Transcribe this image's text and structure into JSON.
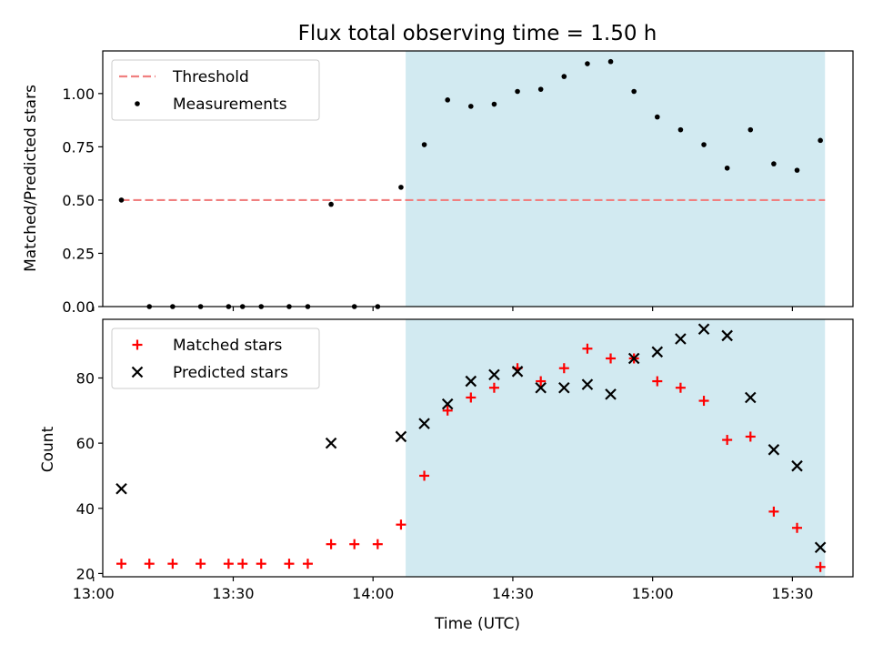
{
  "chart_data": [
    {
      "type": "scatter",
      "title": "Flux total observing time = 1.50 h",
      "xlabel": "",
      "ylabel": "Matched/Predicted stars",
      "xlim": [
        "13:02",
        "15:43"
      ],
      "ylim": [
        0,
        1.2
      ],
      "x_ticks": [
        "13:00",
        "13:30",
        "14:00",
        "14:30",
        "15:00",
        "15:30"
      ],
      "y_ticks": [
        "0.00",
        "0.25",
        "0.50",
        "0.75",
        "1.00"
      ],
      "legend": {
        "position": "top-left",
        "entries": [
          "Threshold",
          "Measurements"
        ]
      },
      "shaded_region": {
        "from": "14:07",
        "to": "15:37",
        "color": "#add8e6"
      },
      "threshold": {
        "name": "Threshold",
        "value": 0.5,
        "from": "13:06",
        "to": "15:37",
        "color": "#f08080"
      },
      "series": [
        {
          "name": "Measurements",
          "color": "#000000",
          "x": [
            "13:06",
            "13:12",
            "13:17",
            "13:23",
            "13:29",
            "13:32",
            "13:36",
            "13:42",
            "13:46",
            "13:51",
            "13:56",
            "14:01",
            "14:06",
            "14:11",
            "14:16",
            "14:21",
            "14:26",
            "14:31",
            "14:36",
            "14:41",
            "14:46",
            "14:51",
            "14:56",
            "15:01",
            "15:06",
            "15:11",
            "15:16",
            "15:21",
            "15:26",
            "15:31",
            "15:36"
          ],
          "values": [
            0.5,
            0.0,
            0.0,
            0.0,
            0.0,
            0.0,
            0.0,
            0.0,
            0.0,
            0.48,
            0.0,
            0.0,
            0.56,
            0.76,
            0.97,
            0.94,
            0.95,
            1.01,
            1.02,
            1.08,
            1.14,
            1.15,
            1.01,
            0.89,
            0.83,
            0.76,
            0.65,
            0.83,
            0.67,
            0.64,
            0.78
          ]
        }
      ]
    },
    {
      "type": "scatter",
      "title": "",
      "xlabel": "Time (UTC)",
      "ylabel": "Count",
      "xlim": [
        "13:02",
        "15:43"
      ],
      "ylim": [
        19,
        98
      ],
      "x_ticks": [
        "13:00",
        "13:30",
        "14:00",
        "14:30",
        "15:00",
        "15:30"
      ],
      "y_ticks": [
        "20",
        "40",
        "60",
        "80"
      ],
      "legend": {
        "position": "top-left",
        "entries": [
          "Matched stars",
          "Predicted stars"
        ]
      },
      "shaded_region": {
        "from": "14:07",
        "to": "15:37",
        "color": "#add8e6"
      },
      "series": [
        {
          "name": "Matched stars",
          "color": "#ff0000",
          "marker": "+",
          "x": [
            "13:06",
            "13:12",
            "13:17",
            "13:23",
            "13:29",
            "13:32",
            "13:36",
            "13:42",
            "13:46",
            "13:51",
            "13:56",
            "14:01",
            "14:06",
            "14:11",
            "14:16",
            "14:21",
            "14:26",
            "14:31",
            "14:36",
            "14:41",
            "14:46",
            "14:51",
            "14:56",
            "15:01",
            "15:06",
            "15:11",
            "15:16",
            "15:21",
            "15:26",
            "15:31",
            "15:36"
          ],
          "values": [
            23,
            23,
            23,
            23,
            23,
            23,
            23,
            23,
            23,
            29,
            29,
            29,
            35,
            50,
            70,
            74,
            77,
            83,
            79,
            83,
            89,
            86,
            86,
            79,
            77,
            73,
            61,
            62,
            39,
            34,
            22
          ]
        },
        {
          "name": "Predicted stars",
          "color": "#000000",
          "marker": "x",
          "x": [
            "13:06",
            "13:51",
            "14:06",
            "14:11",
            "14:16",
            "14:21",
            "14:26",
            "14:31",
            "14:36",
            "14:41",
            "14:46",
            "14:51",
            "14:56",
            "15:01",
            "15:06",
            "15:11",
            "15:16",
            "15:21",
            "15:26",
            "15:31",
            "15:36"
          ],
          "values": [
            46,
            60,
            62,
            66,
            72,
            79,
            81,
            82,
            77,
            77,
            78,
            75,
            86,
            88,
            92,
            95,
            93,
            74,
            58,
            53,
            28
          ]
        }
      ]
    }
  ]
}
